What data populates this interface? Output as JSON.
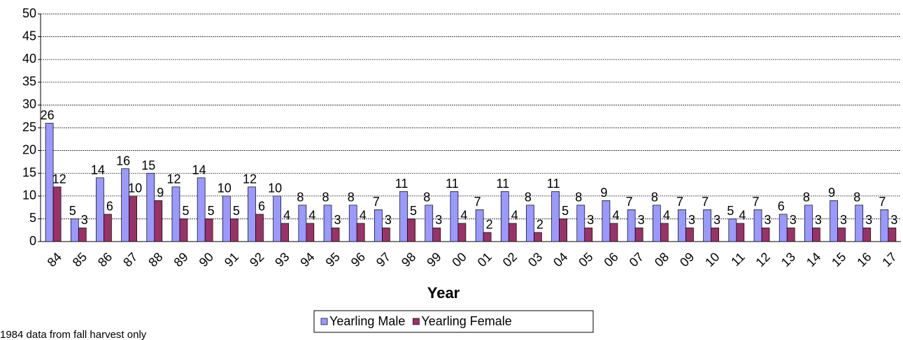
{
  "chart_data": {
    "type": "bar",
    "categories": [
      "84",
      "85",
      "86",
      "87",
      "88",
      "89",
      "90",
      "91",
      "92",
      "93",
      "94",
      "95",
      "96",
      "97",
      "98",
      "99",
      "00",
      "01",
      "02",
      "03",
      "04",
      "05",
      "06",
      "07",
      "08",
      "09",
      "10",
      "11",
      "12",
      "13",
      "14",
      "15",
      "16",
      "17"
    ],
    "series": [
      {
        "name": "Yearling Male",
        "color": "#9999ff",
        "values": [
          26,
          5,
          14,
          16,
          15,
          12,
          14,
          10,
          12,
          10,
          8,
          8,
          8,
          7,
          11,
          8,
          11,
          7,
          11,
          8,
          11,
          8,
          9,
          7,
          8,
          7,
          7,
          5,
          7,
          6,
          8,
          9,
          8,
          7
        ]
      },
      {
        "name": "Yearling Female",
        "color": "#993366",
        "values": [
          12,
          3,
          6,
          10,
          9,
          5,
          5,
          5,
          6,
          4,
          4,
          3,
          4,
          3,
          5,
          3,
          4,
          2,
          4,
          2,
          5,
          3,
          4,
          3,
          4,
          3,
          3,
          4,
          3,
          3,
          3,
          3,
          3,
          3
        ]
      }
    ],
    "x_label": "Year",
    "ylim": [
      0,
      50
    ],
    "yticks": [
      0,
      5,
      10,
      15,
      20,
      25,
      30,
      35,
      40,
      45,
      50
    ],
    "grid": true,
    "legend": "bottom",
    "footnote": "1984 data from fall harvest only"
  }
}
